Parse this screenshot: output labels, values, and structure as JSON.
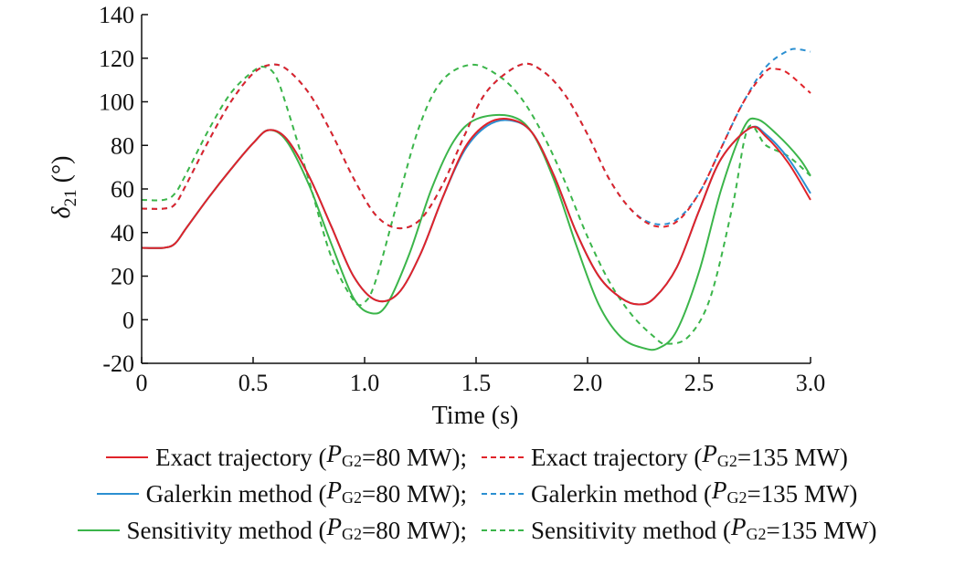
{
  "chart_data": {
    "type": "line",
    "xlabel": "Time (s)",
    "ylabel_main": "δ",
    "ylabel_sub": "21",
    "ylabel_unit": " (°)",
    "xlim": [
      0,
      3.0
    ],
    "ylim": [
      -20,
      140
    ],
    "xticks": [
      "0",
      "0.5",
      "1.0",
      "1.5",
      "2.0",
      "2.5",
      "3.0"
    ],
    "yticks": [
      "-20",
      "0",
      "20",
      "40",
      "60",
      "80",
      "100",
      "120",
      "140"
    ],
    "grid": false,
    "legend_position": "bottom",
    "series": [
      {
        "key": "exact80",
        "name": "Exact trajectory",
        "p_value": "=80 MW",
        "separator": ";",
        "color": "#e0232a",
        "dash": "solid",
        "x": [
          0,
          0.1,
          0.15,
          0.2,
          0.3,
          0.4,
          0.5,
          0.57,
          0.65,
          0.75,
          0.85,
          0.95,
          1.05,
          1.15,
          1.25,
          1.35,
          1.45,
          1.55,
          1.65,
          1.75,
          1.85,
          1.95,
          2.05,
          2.15,
          2.23,
          2.3,
          2.4,
          2.5,
          2.6,
          2.73,
          2.8,
          2.9,
          3.0
        ],
        "y": [
          33,
          33,
          35,
          42,
          56,
          69,
          81,
          87,
          83,
          66,
          43,
          20,
          9,
          12,
          30,
          56,
          79,
          90,
          92,
          86,
          66,
          40,
          20,
          10,
          7,
          10,
          24,
          50,
          74,
          88,
          84,
          72,
          55
        ]
      },
      {
        "key": "exact135",
        "name": "Exact trajectory",
        "p_value": "=135 MW",
        "separator": "",
        "color": "#e0232a",
        "dash": "dashed",
        "x": [
          0,
          0.1,
          0.15,
          0.2,
          0.3,
          0.4,
          0.5,
          0.58,
          0.65,
          0.75,
          0.85,
          0.95,
          1.05,
          1.15,
          1.25,
          1.35,
          1.45,
          1.55,
          1.7,
          1.8,
          1.9,
          2.0,
          2.1,
          2.2,
          2.3,
          2.4,
          2.5,
          2.6,
          2.7,
          2.8,
          2.85,
          2.9,
          3.0
        ],
        "y": [
          51,
          51,
          53,
          62,
          82,
          100,
          113,
          117,
          115,
          104,
          86,
          65,
          48,
          42,
          46,
          62,
          85,
          105,
          117,
          114,
          103,
          85,
          64,
          50,
          43,
          45,
          58,
          79,
          100,
          114,
          115,
          113,
          104
        ]
      },
      {
        "key": "galerkin80",
        "name": "Galerkin method",
        "p_value": "=80 MW",
        "separator": ";",
        "color": "#2b8fd1",
        "dash": "solid",
        "x": [
          0,
          0.1,
          0.15,
          0.2,
          0.3,
          0.4,
          0.5,
          0.57,
          0.65,
          0.75,
          0.85,
          0.95,
          1.05,
          1.15,
          1.25,
          1.35,
          1.45,
          1.55,
          1.65,
          1.75,
          1.85,
          1.95,
          2.05,
          2.15,
          2.23,
          2.3,
          2.4,
          2.5,
          2.6,
          2.73,
          2.8,
          2.9,
          3.0
        ],
        "y": [
          33,
          33,
          35,
          42,
          56,
          69,
          81,
          87,
          83,
          66,
          43,
          20,
          9,
          12,
          30,
          56,
          78,
          89,
          91.5,
          86,
          66,
          40,
          20,
          10,
          7,
          10,
          24,
          50,
          74,
          88,
          85,
          74,
          58
        ]
      },
      {
        "key": "galerkin135",
        "name": "Galerkin method",
        "p_value": "=135 MW",
        "separator": "",
        "color": "#2b8fd1",
        "dash": "dashed",
        "x": [
          0,
          0.1,
          0.15,
          0.2,
          0.3,
          0.4,
          0.5,
          0.58,
          0.65,
          0.75,
          0.85,
          0.95,
          1.05,
          1.15,
          1.25,
          1.35,
          1.45,
          1.55,
          1.7,
          1.8,
          1.9,
          2.0,
          2.1,
          2.2,
          2.3,
          2.4,
          2.5,
          2.6,
          2.7,
          2.8,
          2.9,
          2.95,
          3.0
        ],
        "y": [
          51,
          51,
          53,
          62,
          82,
          100,
          113,
          117,
          115,
          104,
          86,
          65,
          48,
          42,
          46,
          62,
          85,
          105,
          117,
          114,
          103,
          85,
          64,
          50,
          44,
          46,
          58,
          79,
          100,
          116,
          123.5,
          124,
          123
        ]
      },
      {
        "key": "sens80",
        "name": "Sensitivity method",
        "p_value": "=80 MW",
        "separator": ";",
        "color": "#3bb54a",
        "dash": "solid",
        "x": [
          0,
          0.1,
          0.15,
          0.2,
          0.3,
          0.4,
          0.5,
          0.57,
          0.65,
          0.75,
          0.85,
          0.95,
          1.03,
          1.1,
          1.2,
          1.3,
          1.4,
          1.5,
          1.65,
          1.75,
          1.85,
          1.95,
          2.05,
          2.15,
          2.25,
          2.32,
          2.4,
          2.5,
          2.6,
          2.7,
          2.76,
          2.85,
          2.95,
          3.0
        ],
        "y": [
          33,
          33,
          35,
          42,
          56,
          69,
          81,
          87,
          82,
          62,
          35,
          10,
          3,
          7,
          30,
          60,
          82,
          92,
          93.5,
          86,
          64,
          34,
          7,
          -8,
          -13,
          -13,
          -5,
          22,
          60,
          88,
          92,
          85,
          74,
          66
        ]
      },
      {
        "key": "sens135",
        "name": "Sensitivity method",
        "p_value": "=135 MW",
        "separator": "",
        "color": "#3bb54a",
        "dash": "dashed",
        "x": [
          0,
          0.1,
          0.15,
          0.2,
          0.3,
          0.4,
          0.5,
          0.55,
          0.6,
          0.65,
          0.75,
          0.85,
          0.95,
          1.0,
          1.05,
          1.15,
          1.25,
          1.35,
          1.48,
          1.6,
          1.7,
          1.8,
          1.9,
          2.0,
          2.1,
          2.2,
          2.3,
          2.35,
          2.45,
          2.55,
          2.65,
          2.72,
          2.8,
          2.9,
          3.0
        ],
        "y": [
          55,
          55,
          58,
          67,
          87,
          104,
          114,
          116,
          112,
          98,
          64,
          29,
          9,
          8,
          18,
          55,
          90,
          110,
          117,
          112,
          102,
          85,
          63,
          38,
          17,
          2,
          -8,
          -11,
          -8,
          10,
          52,
          88,
          80,
          75,
          66
        ]
      }
    ]
  }
}
